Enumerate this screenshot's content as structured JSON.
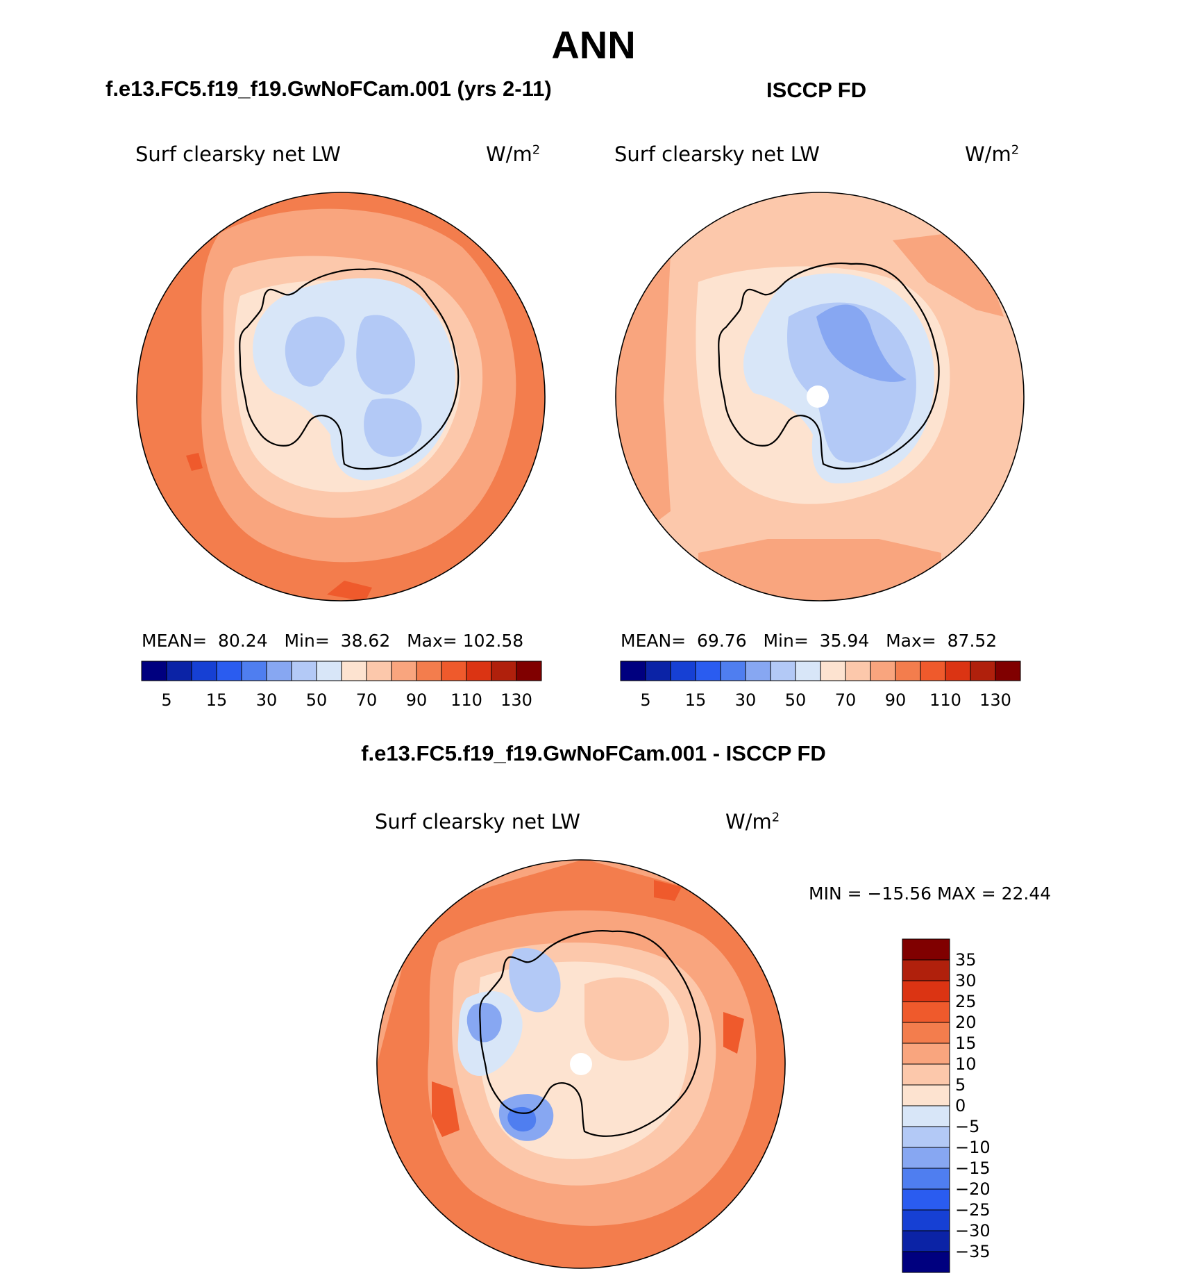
{
  "title": "ANN",
  "panels": {
    "model": {
      "case_title": "f.e13.FC5.f19_f19.GwNoFCam.001 (yrs 2-11)",
      "var_label": "Surf clearsky net LW",
      "units": "W/m",
      "units_exp": "2",
      "mean_label": "MEAN=",
      "mean_value": "80.24",
      "min_label": "Min=",
      "min_value": "38.62",
      "max_label": "Max=",
      "max_value": "102.58"
    },
    "obs": {
      "case_title": "ISCCP FD",
      "var_label": "Surf clearsky net LW",
      "units": "W/m",
      "units_exp": "2",
      "mean_label": "MEAN=",
      "mean_value": "69.76",
      "min_label": "Min=",
      "min_value": "35.94",
      "max_label": "Max=",
      "max_value": "87.52"
    },
    "diff": {
      "case_title": "f.e13.FC5.f19_f19.GwNoFCam.001 - ISCCP FD",
      "var_label": "Surf clearsky net LW",
      "units": "W/m",
      "units_exp": "2",
      "minmax_text": "MIN = −15.56 MAX =   22.44"
    }
  },
  "chart_data": [
    {
      "type": "heatmap",
      "title": "Surf clearsky net LW",
      "subtitle": "f.e13.FC5.f19_f19.GwNoFCam.001 (yrs 2-11)",
      "projection": "south polar stereographic",
      "units": "W/m2",
      "mean": 80.24,
      "min": 38.62,
      "max": 102.58,
      "contour_levels": [
        5,
        10,
        15,
        20,
        30,
        40,
        50,
        60,
        70,
        80,
        90,
        100,
        110,
        120,
        130
      ],
      "colorbar_tick_labels": [
        "5",
        "15",
        "30",
        "50",
        "70",
        "90",
        "110",
        "130"
      ]
    },
    {
      "type": "heatmap",
      "title": "Surf clearsky net LW",
      "subtitle": "ISCCP FD",
      "projection": "south polar stereographic",
      "units": "W/m2",
      "mean": 69.76,
      "min": 35.94,
      "max": 87.52,
      "contour_levels": [
        5,
        10,
        15,
        20,
        30,
        40,
        50,
        60,
        70,
        80,
        90,
        100,
        110,
        120,
        130
      ],
      "colorbar_tick_labels": [
        "5",
        "15",
        "30",
        "50",
        "70",
        "90",
        "110",
        "130"
      ]
    },
    {
      "type": "heatmap",
      "title": "Surf clearsky net LW",
      "subtitle": "f.e13.FC5.f19_f19.GwNoFCam.001 - ISCCP FD",
      "projection": "south polar stereographic",
      "units": "W/m2",
      "min": -15.56,
      "max": 22.44,
      "contour_levels": [
        -35,
        -30,
        -25,
        -20,
        -15,
        -10,
        -5,
        0,
        5,
        10,
        15,
        20,
        25,
        30,
        35
      ],
      "colorbar_tick_labels": [
        "35",
        "30",
        "25",
        "20",
        "15",
        "10",
        "5",
        "0",
        "−5",
        "−10",
        "−15",
        "−20",
        "−25",
        "−30",
        "−35"
      ]
    }
  ],
  "colors": {
    "palette": [
      "#00007f",
      "#0b23a6",
      "#1640d4",
      "#2a5cf0",
      "#4f7ef0",
      "#87a7f2",
      "#b3c9f6",
      "#d8e6f8",
      "#fde3d0",
      "#fcc8ab",
      "#f9a57e",
      "#f37d4d",
      "#ef5a2c",
      "#db3413",
      "#b0200c",
      "#800000"
    ],
    "coast": "#000000"
  }
}
